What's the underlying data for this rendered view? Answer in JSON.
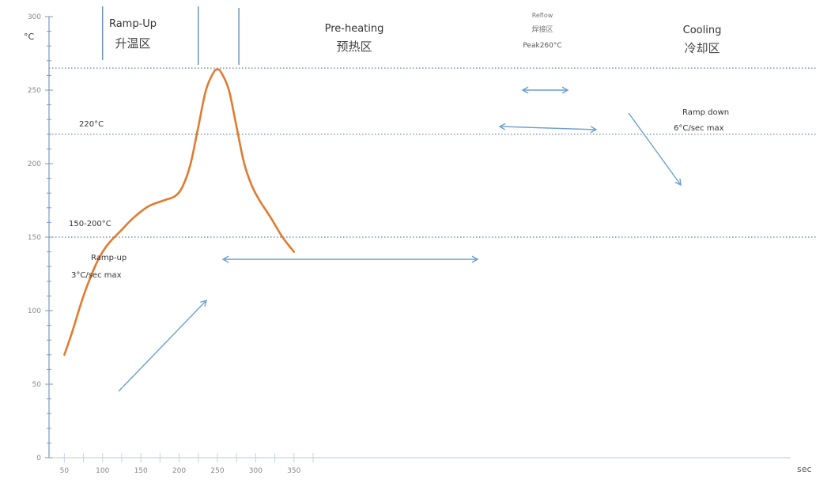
{
  "chart_data": {
    "type": "line",
    "title": "",
    "xlabel": "sec",
    "ylabel": "°C",
    "xlim": [
      30,
      1032
    ],
    "x_ticks": [
      50,
      100,
      150,
      200,
      250,
      300,
      350
    ],
    "ylim": [
      0,
      300
    ],
    "y_ticks": [
      0,
      50,
      100,
      150,
      200,
      250,
      300
    ],
    "grid": false,
    "series": [
      {
        "name": "",
        "color": "#e07b2f",
        "x": [
          50,
          60,
          75,
          90,
          100,
          110,
          125,
          140,
          160,
          180,
          195,
          205,
          215,
          225,
          235,
          245,
          250,
          255,
          265,
          275,
          285,
          295,
          305,
          320,
          335,
          350
        ],
        "y": [
          70,
          85,
          110,
          130,
          140,
          147,
          155,
          163,
          171,
          175,
          178,
          185,
          200,
          225,
          250,
          262,
          264,
          262,
          250,
          225,
          200,
          185,
          175,
          163,
          150,
          140
        ]
      }
    ],
    "reference_lines": [
      {
        "y": 265,
        "label": ""
      },
      {
        "y": 220,
        "label": "220°C"
      },
      {
        "y": 150,
        "label": "150-200°C"
      }
    ],
    "zone_dividers_x": [
      100,
      225,
      278
    ],
    "zones": [
      {
        "name": "Ramp-Up",
        "name_cn": "升温区"
      },
      {
        "name": "Pre-heating",
        "name_cn": "预热区"
      },
      {
        "name": "Reflow",
        "name_cn": "焊接区",
        "note": "Peak260°C"
      },
      {
        "name": "Cooling",
        "name_cn": "冷却区"
      }
    ],
    "annotations": {
      "ramp_up": [
        "Ramp-up",
        "3°C/sec max"
      ],
      "ramp_down": [
        "Ramp down",
        "6°C/sec max"
      ]
    }
  }
}
